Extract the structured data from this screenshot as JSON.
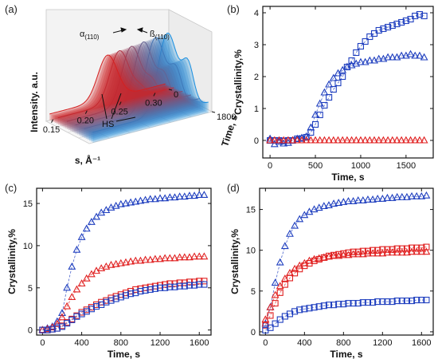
{
  "chart_data": [
    {
      "panel": "(a)",
      "type": "area",
      "view": "3d-waterfall",
      "xlabel": "s, Å⁻¹",
      "ylabel": "Intensity. a.u.",
      "zlabel": "Time, s",
      "xticks": [
        "0.15",
        "0.20",
        "0.25",
        "0.30"
      ],
      "zticks": [
        "0",
        "1800"
      ],
      "xlim": [
        0.14,
        0.32
      ],
      "zlim": [
        0,
        1800
      ],
      "annotations": [
        {
          "text": "α",
          "sub": "(110)"
        },
        {
          "text": "ß",
          "sub": "(110)"
        },
        {
          "text": "HS"
        }
      ],
      "series": [
        {
          "color": "#d42020",
          "peak_at_time_0": 0.23,
          "peak_at_time_1800": 0.255
        },
        {
          "color": "#1a8fe0",
          "peak_at_time_0": 0.23,
          "peak_at_time_1800": 0.255
        }
      ]
    },
    {
      "panel": "(b)",
      "type": "scatter",
      "xlabel": "Time, s",
      "ylabel": "Crystallinity,%",
      "xlim": [
        -80,
        1800
      ],
      "ylim": [
        -0.55,
        4.2
      ],
      "xticks": [
        0,
        500,
        1000,
        1500
      ],
      "yticks": [
        0,
        1,
        2,
        3,
        4
      ],
      "series": [
        {
          "marker": "square",
          "color": "#1f3fbf",
          "x": [
            0,
            50,
            100,
            150,
            200,
            250,
            300,
            350,
            400,
            450,
            500,
            550,
            600,
            650,
            700,
            750,
            800,
            850,
            900,
            950,
            1000,
            1050,
            1100,
            1150,
            1200,
            1250,
            1300,
            1350,
            1400,
            1450,
            1500,
            1550,
            1600,
            1650,
            1700
          ],
          "y": [
            0,
            0,
            0,
            -0.02,
            0,
            0,
            0.05,
            0.06,
            0.1,
            0.25,
            0.5,
            0.8,
            1.1,
            1.35,
            1.6,
            1.8,
            2.0,
            2.3,
            2.5,
            2.75,
            2.95,
            3.1,
            3.25,
            3.35,
            3.45,
            3.5,
            3.55,
            3.6,
            3.65,
            3.7,
            3.75,
            3.8,
            3.9,
            3.95,
            3.9
          ]
        },
        {
          "marker": "triangle",
          "color": "#1f3fbf",
          "x": [
            0,
            50,
            100,
            150,
            200,
            250,
            300,
            350,
            400,
            450,
            500,
            550,
            600,
            650,
            700,
            750,
            800,
            850,
            900,
            950,
            1000,
            1050,
            1100,
            1150,
            1200,
            1250,
            1300,
            1350,
            1400,
            1450,
            1500,
            1550,
            1600,
            1650,
            1700
          ],
          "y": [
            0.05,
            -0.12,
            -0.05,
            -0.1,
            -0.08,
            0,
            0.05,
            0.08,
            0.12,
            0.4,
            0.8,
            1.15,
            1.5,
            1.75,
            1.95,
            2.1,
            2.2,
            2.3,
            2.35,
            2.4,
            2.45,
            2.45,
            2.5,
            2.5,
            2.55,
            2.55,
            2.6,
            2.6,
            2.6,
            2.65,
            2.65,
            2.7,
            2.65,
            2.65,
            2.6
          ]
        },
        {
          "marker": "triangle",
          "color": "#e02020",
          "x": [
            0,
            50,
            100,
            150,
            200,
            250,
            300,
            350,
            400,
            450,
            500,
            550,
            600,
            650,
            700,
            750,
            800,
            850,
            900,
            950,
            1000,
            1050,
            1100,
            1150,
            1200,
            1250,
            1300,
            1350,
            1400,
            1450,
            1500,
            1550,
            1600,
            1650,
            1700
          ],
          "y": [
            0,
            0,
            0,
            0,
            0,
            0,
            0,
            0,
            0,
            0,
            0,
            0,
            0,
            0,
            0,
            0,
            0,
            0,
            0,
            0,
            0,
            0,
            0,
            0,
            0,
            0,
            0,
            0,
            0,
            0,
            0,
            0,
            0,
            0,
            0
          ]
        }
      ]
    },
    {
      "panel": "(c)",
      "type": "scatter",
      "xlabel": "Time, s",
      "ylabel": "Crystallinity,%",
      "xlim": [
        -60,
        1720
      ],
      "ylim": [
        -0.6,
        16.8
      ],
      "xticks": [
        0,
        400,
        800,
        1200,
        1600
      ],
      "yticks": [
        0,
        5,
        10,
        15
      ],
      "series": [
        {
          "marker": "triangle",
          "color": "#1f3fbf",
          "x": [
            0,
            50,
            100,
            150,
            200,
            250,
            300,
            350,
            400,
            450,
            500,
            550,
            600,
            650,
            700,
            750,
            800,
            850,
            900,
            950,
            1000,
            1050,
            1100,
            1150,
            1200,
            1250,
            1300,
            1350,
            1400,
            1450,
            1500,
            1550,
            1600,
            1650
          ],
          "y": [
            0,
            0.2,
            0.4,
            1.0,
            2.0,
            5.0,
            7.5,
            9.5,
            11.0,
            12.0,
            12.8,
            13.4,
            13.9,
            14.2,
            14.5,
            14.7,
            14.9,
            15.0,
            15.1,
            15.2,
            15.3,
            15.4,
            15.5,
            15.5,
            15.6,
            15.6,
            15.7,
            15.7,
            15.8,
            15.8,
            15.9,
            15.9,
            16.0,
            16.0
          ]
        },
        {
          "marker": "triangle",
          "color": "#e02020",
          "x": [
            0,
            50,
            100,
            150,
            200,
            250,
            300,
            350,
            400,
            450,
            500,
            550,
            600,
            650,
            700,
            750,
            800,
            850,
            900,
            950,
            1000,
            1050,
            1100,
            1150,
            1200,
            1250,
            1300,
            1350,
            1400,
            1450,
            1500,
            1550,
            1600,
            1650
          ],
          "y": [
            0,
            0.1,
            0.3,
            0.7,
            1.5,
            2.8,
            3.9,
            4.8,
            5.5,
            6.1,
            6.6,
            7.0,
            7.3,
            7.5,
            7.7,
            7.8,
            7.9,
            8.0,
            8.1,
            8.2,
            8.2,
            8.3,
            8.3,
            8.4,
            8.4,
            8.5,
            8.5,
            8.5,
            8.6,
            8.6,
            8.6,
            8.7,
            8.7,
            8.7
          ]
        },
        {
          "marker": "square",
          "color": "#e02020",
          "x": [
            0,
            50,
            100,
            150,
            200,
            250,
            300,
            350,
            400,
            450,
            500,
            550,
            600,
            650,
            700,
            750,
            800,
            850,
            900,
            950,
            1000,
            1050,
            1100,
            1150,
            1200,
            1250,
            1300,
            1350,
            1400,
            1450,
            1500,
            1550,
            1600,
            1650
          ],
          "y": [
            0,
            0,
            0.1,
            0.2,
            0.5,
            0.9,
            1.3,
            1.7,
            2.1,
            2.4,
            2.7,
            3.0,
            3.3,
            3.5,
            3.8,
            4.0,
            4.2,
            4.4,
            4.6,
            4.8,
            4.9,
            5.0,
            5.1,
            5.2,
            5.3,
            5.4,
            5.5,
            5.5,
            5.6,
            5.6,
            5.7,
            5.7,
            5.8,
            5.8
          ]
        },
        {
          "marker": "square",
          "color": "#1f3fbf",
          "x": [
            0,
            50,
            100,
            150,
            200,
            250,
            300,
            350,
            400,
            450,
            500,
            550,
            600,
            650,
            700,
            750,
            800,
            850,
            900,
            950,
            1000,
            1050,
            1100,
            1150,
            1200,
            1250,
            1300,
            1350,
            1400,
            1450,
            1500,
            1550,
            1600,
            1650
          ],
          "y": [
            0,
            0,
            0.1,
            0.2,
            0.4,
            0.8,
            1.2,
            1.6,
            1.9,
            2.2,
            2.5,
            2.8,
            3.0,
            3.3,
            3.5,
            3.7,
            3.9,
            4.1,
            4.3,
            4.4,
            4.6,
            4.7,
            4.8,
            4.9,
            5.0,
            5.0,
            5.1,
            5.1,
            5.2,
            5.2,
            5.3,
            5.3,
            5.4,
            5.4
          ]
        }
      ]
    },
    {
      "panel": "(d)",
      "type": "scatter",
      "xlabel": "Time, s",
      "ylabel": "Crystallinity,%",
      "xlim": [
        -60,
        1720
      ],
      "ylim": [
        -0.4,
        17.6
      ],
      "xticks": [
        0,
        400,
        800,
        1200,
        1600
      ],
      "yticks": [
        0,
        5,
        10,
        15
      ],
      "series": [
        {
          "marker": "triangle",
          "color": "#1f3fbf",
          "x": [
            0,
            50,
            100,
            150,
            200,
            250,
            300,
            350,
            400,
            450,
            500,
            550,
            600,
            650,
            700,
            750,
            800,
            850,
            900,
            950,
            1000,
            1050,
            1100,
            1150,
            1200,
            1250,
            1300,
            1350,
            1400,
            1450,
            1500,
            1550,
            1600,
            1650
          ],
          "y": [
            1.0,
            3.0,
            6.0,
            8.5,
            10.5,
            12.0,
            13.0,
            13.8,
            14.3,
            14.7,
            15.0,
            15.2,
            15.4,
            15.5,
            15.7,
            15.8,
            15.9,
            16.0,
            16.0,
            16.1,
            16.1,
            16.2,
            16.2,
            16.3,
            16.3,
            16.4,
            16.4,
            16.5,
            16.5,
            16.5,
            16.6,
            16.6,
            16.6,
            16.7
          ]
        },
        {
          "marker": "square",
          "color": "#e02020",
          "x": [
            0,
            50,
            100,
            150,
            200,
            250,
            300,
            350,
            400,
            450,
            500,
            550,
            600,
            650,
            700,
            750,
            800,
            850,
            900,
            950,
            1000,
            1050,
            1100,
            1150,
            1200,
            1250,
            1300,
            1350,
            1400,
            1450,
            1500,
            1550,
            1600,
            1650
          ],
          "y": [
            0.8,
            2.0,
            3.5,
            4.8,
            5.8,
            6.6,
            7.2,
            7.7,
            8.1,
            8.4,
            8.7,
            8.9,
            9.1,
            9.3,
            9.4,
            9.5,
            9.6,
            9.7,
            9.8,
            9.8,
            9.9,
            9.9,
            10.0,
            10.0,
            10.1,
            10.1,
            10.1,
            10.2,
            10.2,
            10.2,
            10.3,
            10.3,
            10.3,
            10.4
          ]
        },
        {
          "marker": "triangle",
          "color": "#e02020",
          "x": [
            0,
            50,
            100,
            150,
            200,
            250,
            300,
            350,
            400,
            450,
            500,
            550,
            600,
            650,
            700,
            750,
            800,
            850,
            900,
            950,
            1000,
            1050,
            1100,
            1150,
            1200,
            1250,
            1300,
            1350,
            1400,
            1450,
            1500,
            1550,
            1600,
            1650
          ],
          "y": [
            1.5,
            3.0,
            4.5,
            5.6,
            6.5,
            7.2,
            7.7,
            8.1,
            8.4,
            8.7,
            8.9,
            9.0,
            9.1,
            9.2,
            9.3,
            9.3,
            9.4,
            9.4,
            9.5,
            9.5,
            9.5,
            9.6,
            9.6,
            9.6,
            9.6,
            9.7,
            9.7,
            9.7,
            9.7,
            9.7,
            9.8,
            9.8,
            9.8,
            9.8
          ]
        },
        {
          "marker": "square",
          "color": "#1f3fbf",
          "x": [
            0,
            50,
            100,
            150,
            200,
            250,
            300,
            350,
            400,
            450,
            500,
            550,
            600,
            650,
            700,
            750,
            800,
            850,
            900,
            950,
            1000,
            1050,
            1100,
            1150,
            1200,
            1250,
            1300,
            1350,
            1400,
            1450,
            1500,
            1550,
            1600,
            1650
          ],
          "y": [
            0.2,
            0.5,
            1.0,
            1.5,
            1.9,
            2.2,
            2.5,
            2.7,
            2.8,
            2.9,
            3.0,
            3.1,
            3.2,
            3.3,
            3.3,
            3.4,
            3.4,
            3.5,
            3.5,
            3.5,
            3.6,
            3.6,
            3.6,
            3.7,
            3.7,
            3.7,
            3.7,
            3.8,
            3.8,
            3.8,
            3.8,
            3.9,
            3.9,
            3.9
          ]
        }
      ]
    }
  ]
}
